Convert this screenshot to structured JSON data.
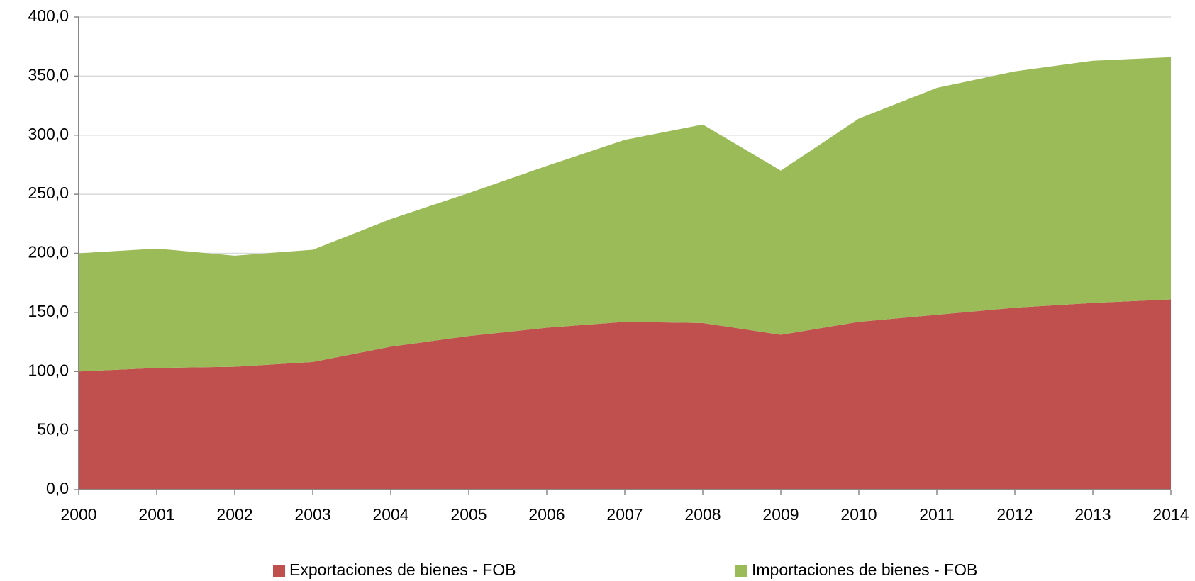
{
  "chart_data": {
    "type": "stacked-area",
    "categories": [
      "2000",
      "2001",
      "2002",
      "2003",
      "2004",
      "2005",
      "2006",
      "2007",
      "2008",
      "2009",
      "2010",
      "2011",
      "2012",
      "2013",
      "2014"
    ],
    "series": [
      {
        "name": "Exportaciones de bienes - FOB",
        "color": "#c0504d",
        "values": [
          100,
          103,
          104,
          108,
          121,
          130,
          137,
          142,
          141,
          131,
          142,
          148,
          154,
          158,
          161
        ]
      },
      {
        "name": "Importaciones de bienes - FOB",
        "color": "#9bbb59",
        "values": [
          100,
          101,
          94,
          95,
          108,
          121,
          137,
          154,
          168,
          139,
          172,
          192,
          200,
          205,
          205
        ]
      }
    ],
    "ylim": [
      0,
      400
    ],
    "yticks": [
      {
        "value": 0,
        "label": "0,0"
      },
      {
        "value": 50,
        "label": "50,0"
      },
      {
        "value": 100,
        "label": "100,0"
      },
      {
        "value": 150,
        "label": "150,0"
      },
      {
        "value": 200,
        "label": "200,0"
      },
      {
        "value": 250,
        "label": "250,0"
      },
      {
        "value": 300,
        "label": "300,0"
      },
      {
        "value": 350,
        "label": "350,0"
      },
      {
        "value": 400,
        "label": "400,0"
      }
    ],
    "grid": true,
    "legend": "bottom"
  }
}
